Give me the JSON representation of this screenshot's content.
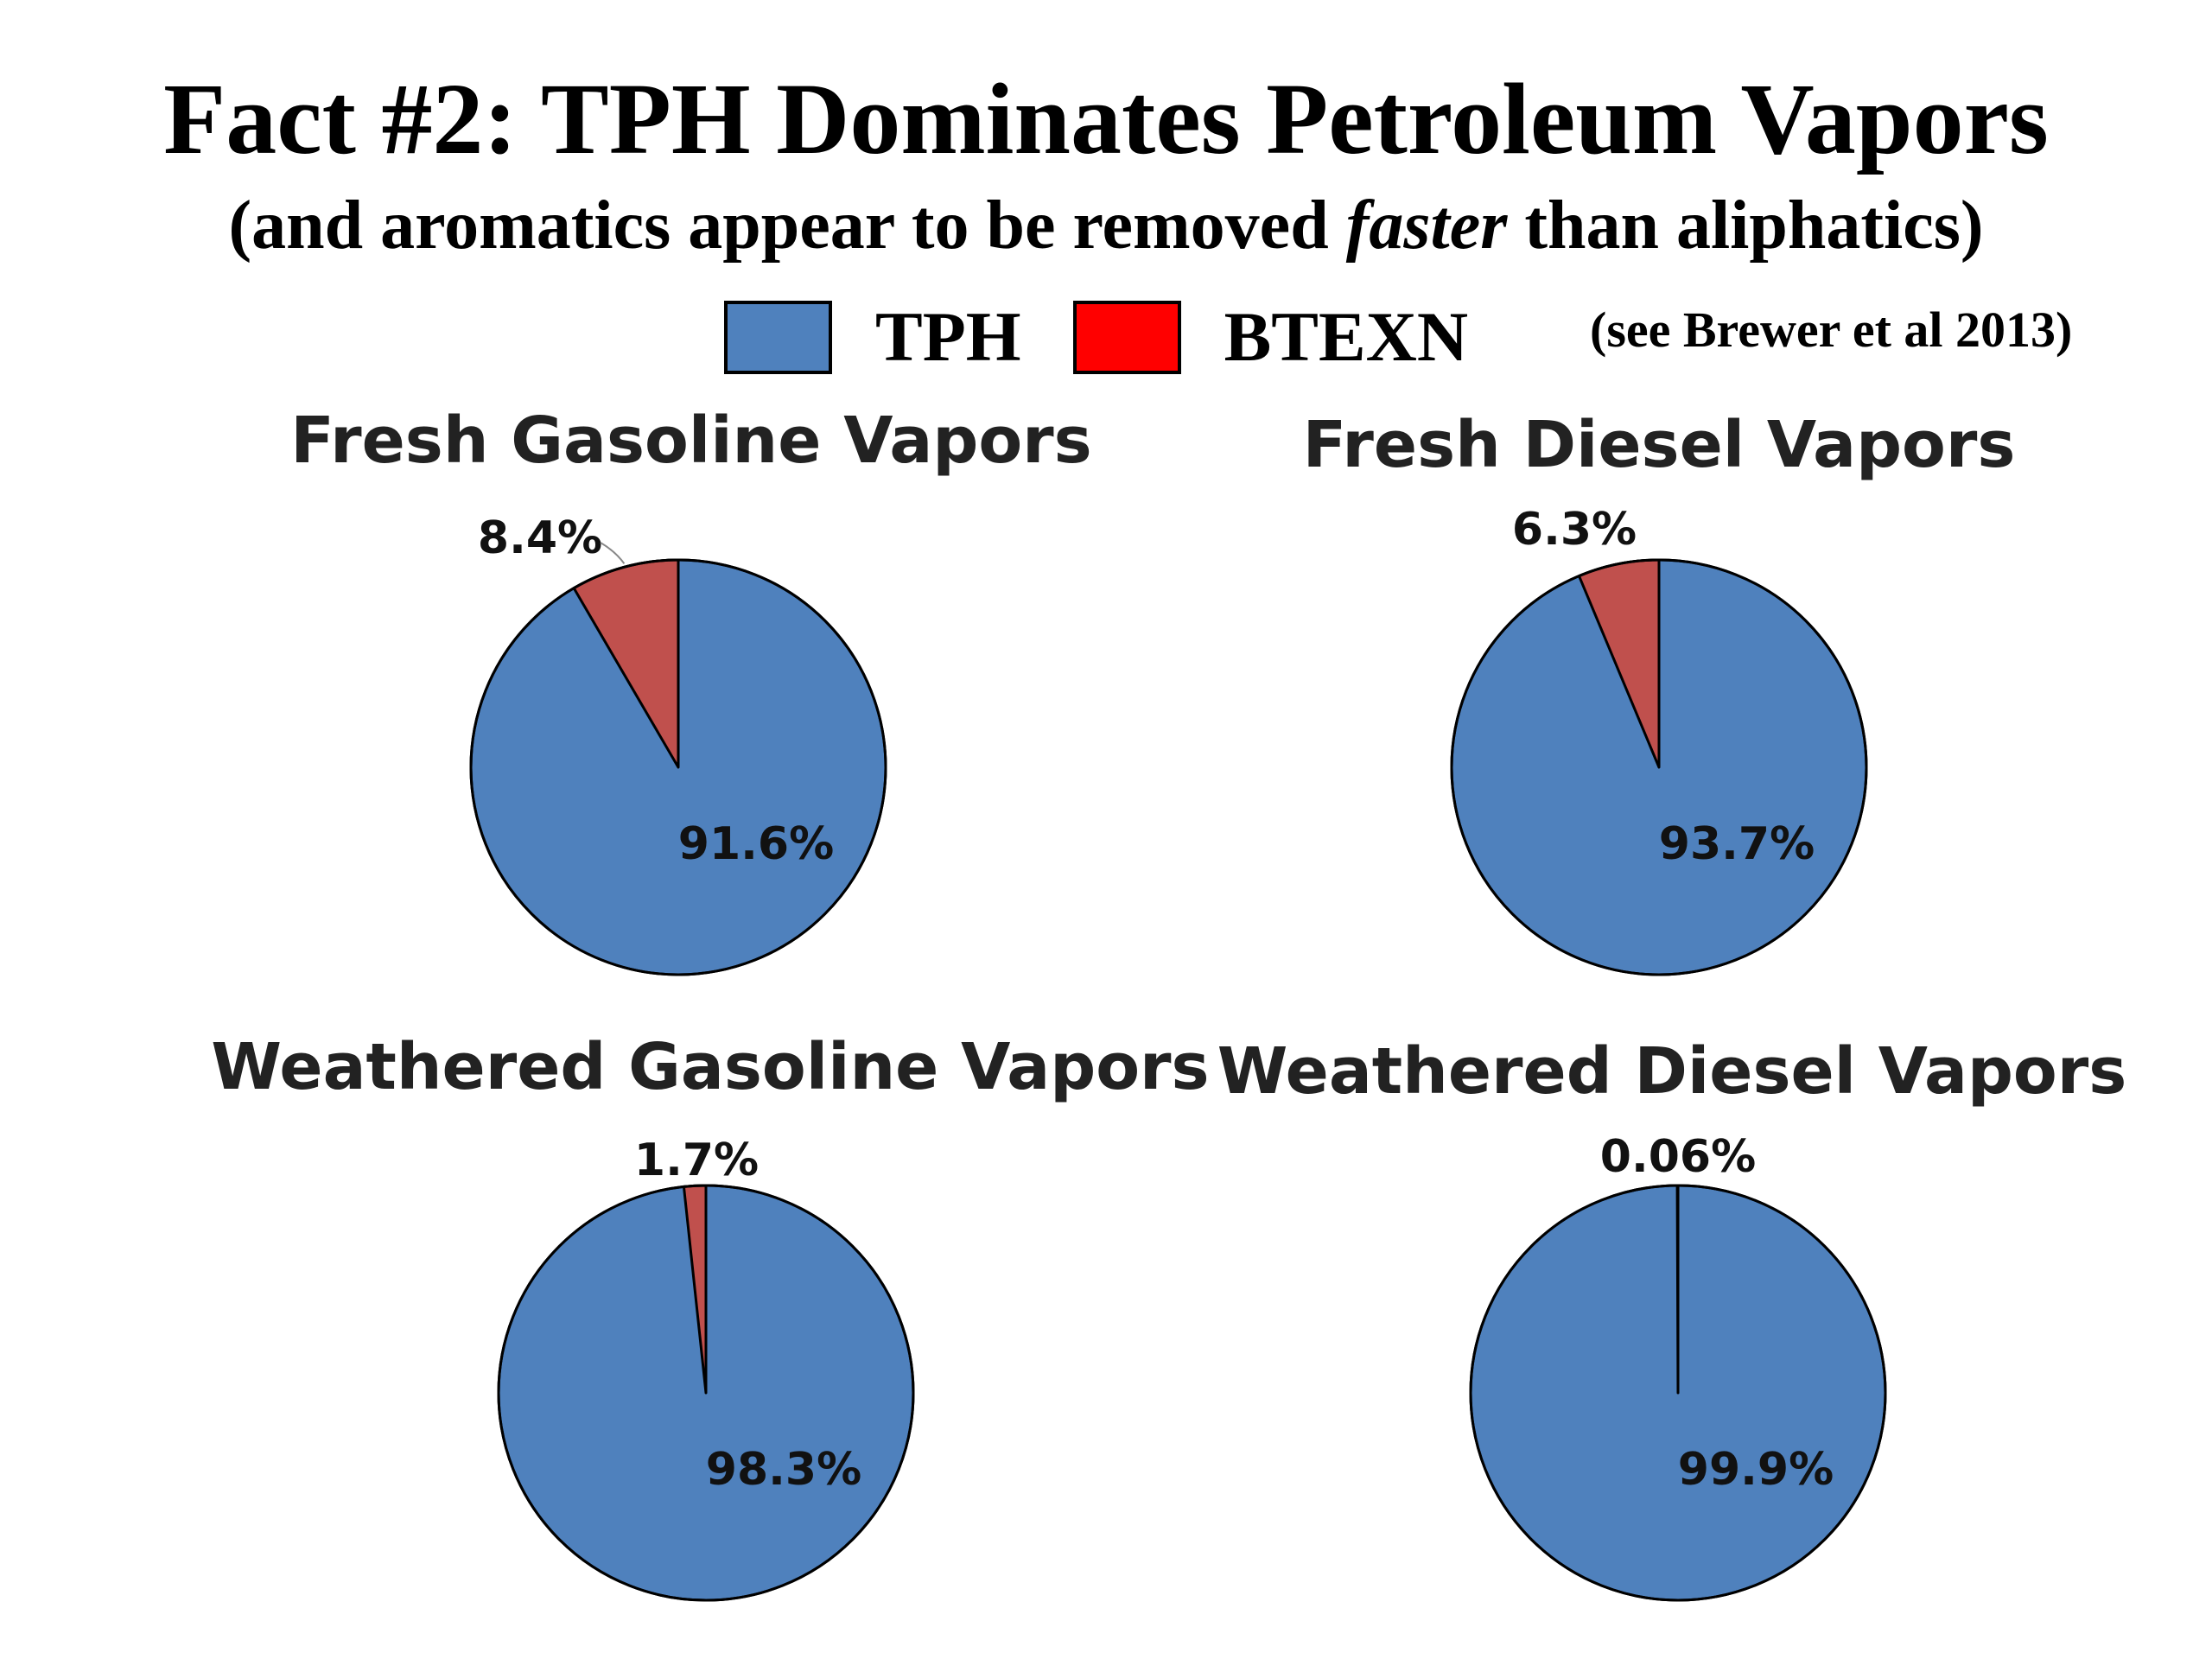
{
  "title": "Fact #2: TPH Dominates Petroleum Vapors",
  "subtitle": {
    "before": "(and aromatics appear to be removed ",
    "emphasis": "faster",
    "after": " than aliphatics)"
  },
  "legend": [
    {
      "label": "TPH",
      "color": "#4f81bd"
    },
    {
      "label": "BTEXN",
      "color": "#ff0000"
    }
  ],
  "citation": "(see Brewer et al 2013)",
  "chart_data": [
    {
      "type": "pie",
      "title": "Fresh Gasoline Vapors",
      "slices": [
        {
          "name": "TPH",
          "value": 91.6,
          "label": "91.6%",
          "color": "#4f81bd"
        },
        {
          "name": "BTEXN",
          "value": 8.4,
          "label": "8.4%",
          "color": "#c0504d"
        }
      ]
    },
    {
      "type": "pie",
      "title": "Fresh Diesel Vapors",
      "slices": [
        {
          "name": "TPH",
          "value": 93.7,
          "label": "93.7%",
          "color": "#4f81bd"
        },
        {
          "name": "BTEXN",
          "value": 6.3,
          "label": "6.3%",
          "color": "#c0504d"
        }
      ]
    },
    {
      "type": "pie",
      "title": "Weathered Gasoline Vapors",
      "slices": [
        {
          "name": "TPH",
          "value": 98.3,
          "label": "98.3%",
          "color": "#4f81bd"
        },
        {
          "name": "BTEXN",
          "value": 1.7,
          "label": "1.7%",
          "color": "#c0504d"
        }
      ]
    },
    {
      "type": "pie",
      "title": "Weathered Diesel Vapors",
      "slices": [
        {
          "name": "TPH",
          "value": 99.9,
          "label": "99.9%",
          "color": "#4f81bd"
        },
        {
          "name": "BTEXN",
          "value": 0.06,
          "label": "0.06%",
          "color": "#c0504d"
        }
      ]
    }
  ]
}
